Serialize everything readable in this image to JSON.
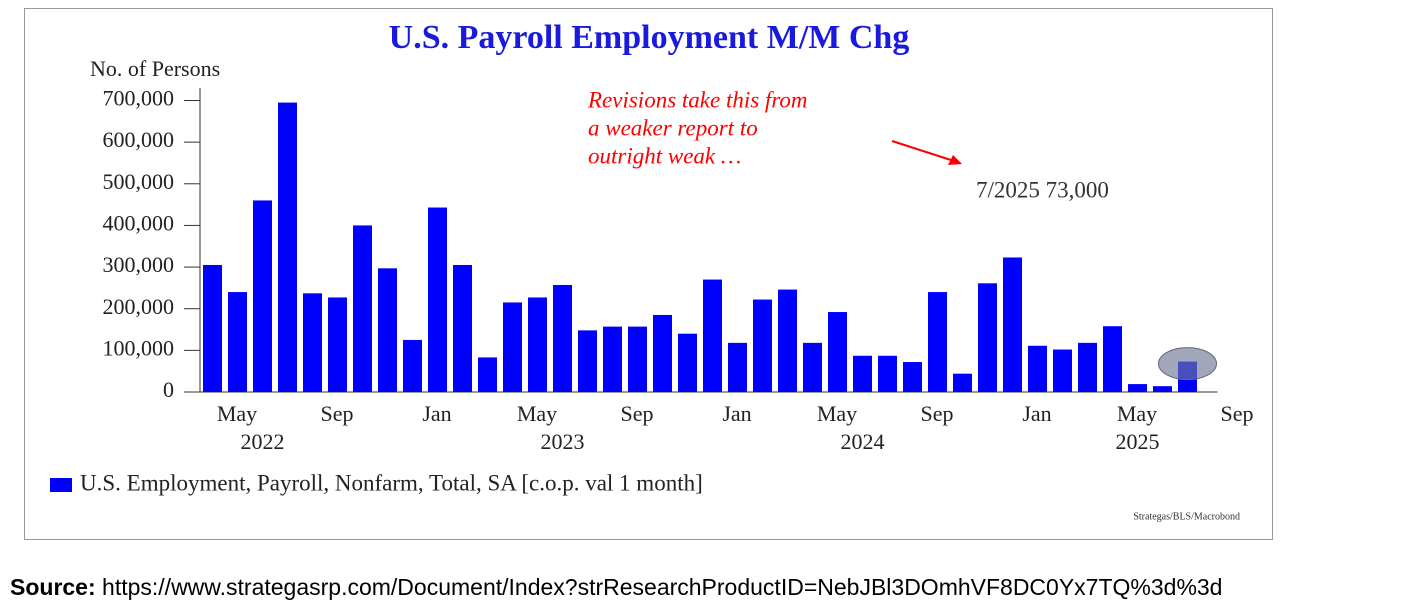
{
  "chart_data": {
    "type": "bar",
    "title": "U.S. Payroll Employment M/M Chg",
    "y_label": "No. of Persons",
    "categories": [
      null,
      "May",
      null,
      null,
      null,
      "Sep",
      null,
      null,
      null,
      "Jan",
      null,
      null,
      null,
      "May",
      null,
      null,
      null,
      "Sep",
      null,
      null,
      null,
      "Jan",
      null,
      null,
      null,
      "May",
      null,
      null,
      null,
      "Sep",
      null,
      null,
      null,
      "Jan",
      null,
      null,
      null,
      "May",
      null,
      null,
      null,
      "Sep"
    ],
    "category_years": [
      null,
      null,
      "2022",
      null,
      null,
      null,
      null,
      null,
      null,
      null,
      null,
      null,
      null,
      null,
      "2023",
      null,
      null,
      null,
      null,
      null,
      null,
      null,
      null,
      null,
      null,
      null,
      "2024",
      null,
      null,
      null,
      null,
      null,
      null,
      null,
      null,
      null,
      null,
      "2025",
      null,
      null,
      null,
      null
    ],
    "series": [
      {
        "name": "U.S. Employment, Payroll, Nonfarm, Total, SA [c.o.p. val 1 month]",
        "color": "#0000ff",
        "values": [
          305000,
          240000,
          460000,
          695000,
          237000,
          227000,
          400000,
          297000,
          125000,
          443000,
          305000,
          83000,
          215000,
          227000,
          257000,
          148000,
          157000,
          157000,
          185000,
          140000,
          270000,
          118000,
          222000,
          246000,
          118000,
          192000,
          87000,
          87000,
          72000,
          240000,
          44000,
          261000,
          323000,
          111000,
          102000,
          118000,
          158000,
          19000,
          14000,
          73000,
          null,
          null
        ]
      }
    ],
    "ylim": [
      0,
      730000
    ],
    "yticks": [
      0,
      {
        "value": 100000,
        "label": "100,000"
      },
      {
        "value": 200000,
        "label": "200,000"
      },
      {
        "value": 300000,
        "label": "300,000"
      },
      {
        "value": 400000,
        "label": "400,000"
      },
      {
        "value": 500000,
        "label": "500,000"
      },
      {
        "value": 600000,
        "label": "600,000"
      },
      {
        "value": 700000,
        "label": "700,000"
      }
    ],
    "grid": false,
    "annotation": [
      "Revisions take this from",
      "a weaker report to",
      "outright weak …"
    ],
    "highlight_label": "7/2025 73,000",
    "credit": "Strategas/BLS/Macrobond"
  },
  "caption": {
    "label": "Source:",
    "text": "https://www.strategasrp.com/Document/Index?strResearchProductID=NebJBl3DOmhVF8DC0Yx7TQ%3d%3d"
  }
}
